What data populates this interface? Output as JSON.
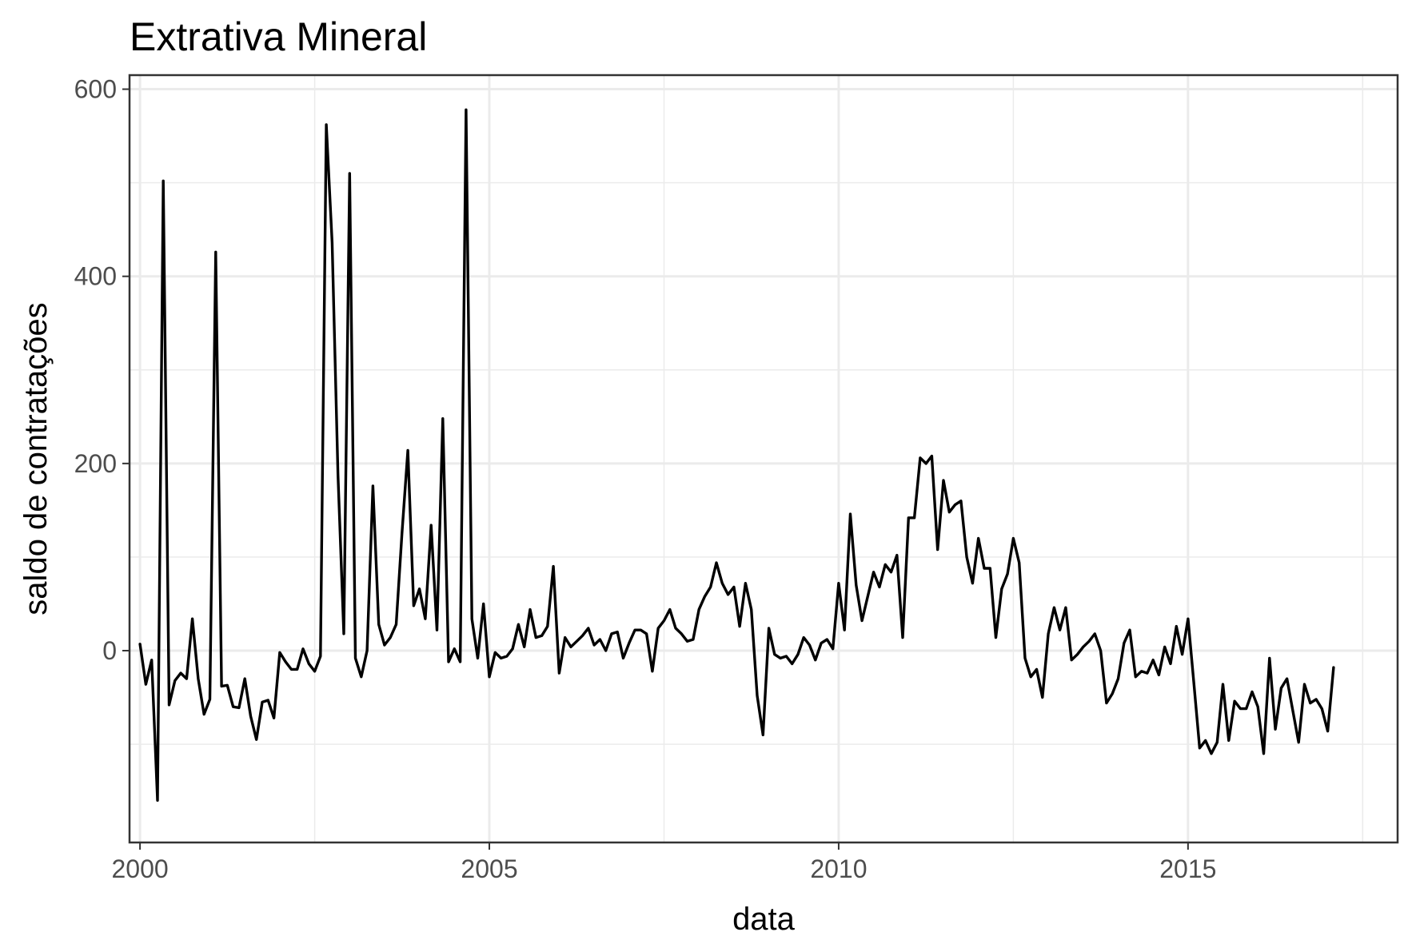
{
  "chart_data": {
    "type": "line",
    "title": "Extrativa Mineral",
    "xlabel": "data",
    "ylabel": "saldo de contratações",
    "xlim": [
      1999.85,
      2018.0
    ],
    "ylim": [
      -205,
      615
    ],
    "x_ticks": [
      2000,
      2005,
      2010,
      2015
    ],
    "x_tick_labels": [
      "2000",
      "2005",
      "2010",
      "2015"
    ],
    "y_ticks": [
      0,
      200,
      400,
      600
    ],
    "y_tick_labels": [
      "0",
      "200",
      "400",
      "600"
    ],
    "grid": true,
    "legend": "none",
    "series": [
      {
        "x_start": 2000.0,
        "x_step": 0.08333333,
        "values": [
          7,
          -36,
          -10,
          -160,
          502,
          -58,
          -32,
          -24,
          -30,
          34,
          -30,
          -68,
          -52,
          426,
          -38,
          -37,
          -60,
          -61,
          -30,
          -70,
          -95,
          -55,
          -53,
          -72,
          -2,
          -12,
          -20,
          -20,
          2,
          -14,
          -22,
          -6,
          562,
          436,
          188,
          18,
          510,
          -8,
          -28,
          0,
          176,
          28,
          6,
          14,
          28,
          126,
          214,
          48,
          66,
          34,
          134,
          22,
          248,
          -12,
          2,
          -12,
          578,
          34,
          -8,
          50,
          -28,
          -2,
          -8,
          -6,
          2,
          28,
          4,
          44,
          14,
          16,
          26,
          90,
          -24,
          14,
          4,
          10,
          16,
          24,
          6,
          12,
          0,
          18,
          20,
          -8,
          8,
          22,
          22,
          18,
          -22,
          24,
          32,
          44,
          24,
          18,
          10,
          12,
          44,
          58,
          68,
          94,
          72,
          60,
          68,
          26,
          72,
          44,
          -48,
          -90,
          24,
          -4,
          -8,
          -6,
          -14,
          -4,
          14,
          6,
          -10,
          8,
          12,
          2,
          72,
          22,
          146,
          70,
          32,
          58,
          84,
          68,
          92,
          84,
          102,
          14,
          142,
          142,
          206,
          200,
          208,
          108,
          182,
          148,
          156,
          160,
          100,
          72,
          120,
          88,
          88,
          14,
          66,
          82,
          120,
          94,
          -8,
          -28,
          -20,
          -50,
          18,
          46,
          22,
          46,
          -10,
          -4,
          4,
          10,
          18,
          0,
          -56,
          -46,
          -30,
          8,
          22,
          -28,
          -22,
          -24,
          -10,
          -26,
          4,
          -14,
          26,
          -4,
          34,
          -34,
          -104,
          -96,
          -110,
          -98,
          -36,
          -96,
          -54,
          -62,
          -62,
          -44,
          -60,
          -110,
          -8,
          -84,
          -40,
          -30,
          -64,
          -98,
          -36,
          -56,
          -52,
          -62,
          -86,
          -18
        ]
      }
    ]
  }
}
